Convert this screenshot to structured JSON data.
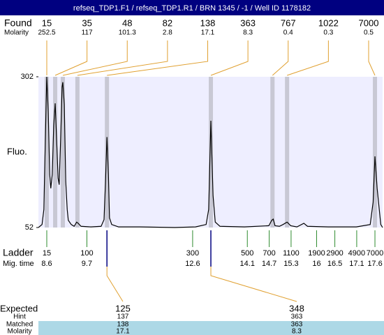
{
  "chart_data": {
    "type": "line",
    "title": "refseq_TDP1.F1 / refseq_TDP1.R1 / BRN 1345 / -1 / Well ID 1178182",
    "ylabel": "Fluo.",
    "ylim": [
      52,
      302
    ],
    "yticks": [
      52,
      302
    ],
    "xlim": [
      8.37,
      17.81
    ],
    "background": "#eeeeff",
    "x": [
      8.37,
      8.47,
      8.52,
      8.56,
      8.6,
      8.64,
      8.68,
      8.71,
      8.75,
      8.79,
      8.83,
      8.87,
      8.91,
      8.94,
      8.98,
      9.02,
      9.04,
      9.08,
      9.12,
      9.16,
      9.19,
      9.27,
      9.35,
      9.42,
      9.46,
      9.54,
      9.81,
      10.09,
      10.17,
      10.21,
      10.25,
      10.29,
      10.32,
      10.38,
      10.57,
      11.15,
      12.11,
      12.68,
      12.97,
      13.04,
      13.1,
      13.16,
      13.22,
      13.35,
      14.02,
      14.69,
      14.77,
      14.81,
      14.86,
      14.98,
      15.08,
      15.19,
      15.29,
      15.46,
      15.65,
      15.75,
      16.32,
      17.09,
      17.47,
      17.55,
      17.6,
      17.66,
      17.76,
      17.81
    ],
    "series": [
      {
        "color": "#000000",
        "values": [
          52,
          57,
          82,
          198,
          302,
          244,
          140,
          117,
          140,
          221,
          258,
          198,
          134,
          123,
          198,
          285,
          293,
          256,
          128,
          82,
          64,
          57,
          54,
          61,
          59,
          54,
          53,
          54,
          65,
          128,
          202,
          140,
          68,
          57,
          53,
          53,
          52,
          53,
          57,
          82,
          229,
          105,
          61,
          54,
          53,
          55,
          64,
          66,
          55,
          54,
          57,
          61,
          55,
          53,
          59,
          54,
          53,
          53,
          57,
          94,
          170,
          117,
          57,
          52
        ]
      }
    ]
  },
  "found": {
    "label": "Found",
    "molarity_label": "Molarity",
    "color": "#e0a030",
    "band_color": "#c8c8d4",
    "peaks": [
      {
        "size": 15,
        "molarity": 252.5,
        "time": 8.6
      },
      {
        "size": 35,
        "molarity": 117,
        "time": 8.83
      },
      {
        "size": 48,
        "molarity": 101.3,
        "time": 9.04
      },
      {
        "size": 82,
        "molarity": 2.8,
        "time": 9.44
      },
      {
        "size": 138,
        "molarity": 17.1,
        "time": 10.25
      },
      {
        "size": 363,
        "molarity": 8.3,
        "time": 13.1
      },
      {
        "size": 767,
        "molarity": 0.4,
        "time": 14.79
      },
      {
        "size": 1022,
        "molarity": 0.3,
        "time": 15.19
      },
      {
        "size": 7000,
        "molarity": 0.5,
        "time": 17.6
      }
    ]
  },
  "ladder": {
    "label": "Ladder",
    "time_label": "Mig. time",
    "color": "#2e8b2e",
    "peaks": [
      {
        "size": 15,
        "time": 8.6
      },
      {
        "size": 100,
        "time": 9.7
      },
      {
        "size": 300,
        "time": 12.6
      },
      {
        "size": 500,
        "time": 14.1
      },
      {
        "size": 700,
        "time": 14.7
      },
      {
        "size": 1100,
        "time": 15.3
      },
      {
        "size": 1900,
        "time": 16
      },
      {
        "size": 2900,
        "time": 16.5
      },
      {
        "size": 4900,
        "time": 17.1
      },
      {
        "size": 7000,
        "time": 17.6
      }
    ]
  },
  "expected": {
    "label": "Expected",
    "hint_label": "Hint",
    "matched_label": "Matched",
    "molarity_label": "Molarity",
    "rows": [
      {
        "size": 125,
        "hint": 137,
        "matched": 138,
        "molarity": 17.1
      },
      {
        "size": 348,
        "hint": 363,
        "matched": 363,
        "molarity": 8.3
      }
    ]
  }
}
